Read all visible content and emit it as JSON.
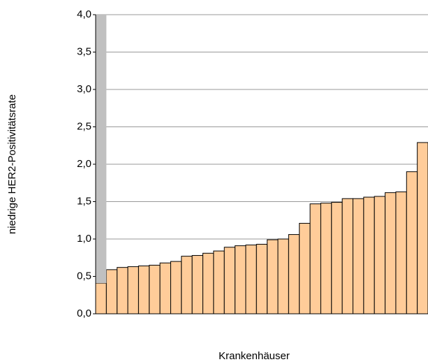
{
  "chart_data": {
    "type": "bar",
    "stacked": true,
    "y_label": "niedrige HER2-Positivitätsrate",
    "x_label": "Krankenhäuser",
    "categories": [
      null,
      null,
      null,
      null,
      null,
      null,
      null,
      null,
      null,
      null,
      null,
      null,
      null,
      null,
      null,
      null,
      null,
      null,
      null,
      null,
      null,
      null,
      null,
      null,
      null,
      null,
      null,
      null,
      null,
      null,
      null
    ],
    "series": [
      {
        "color": "#ffcc99",
        "values": [
          0.41,
          0.59,
          0.62,
          0.63,
          0.64,
          0.65,
          0.68,
          0.7,
          0.77,
          0.78,
          0.81,
          0.84,
          0.89,
          0.91,
          0.92,
          0.93,
          0.99,
          1.0,
          1.06,
          1.21,
          1.47,
          1.48,
          1.49,
          1.54,
          1.54,
          1.56,
          1.57,
          1.62,
          1.63,
          1.9,
          2.29
        ]
      },
      {
        "color": "#c0c0c0",
        "values": [
          3.59,
          null,
          null,
          null,
          null,
          null,
          null,
          null,
          null,
          null,
          null,
          null,
          null,
          null,
          null,
          null,
          null,
          null,
          null,
          null,
          null,
          null,
          null,
          null,
          null,
          null,
          null,
          null,
          null,
          null,
          null
        ]
      }
    ],
    "ylim": [
      0,
      4
    ],
    "yticks": [
      {
        "value": 0,
        "label": "0,0"
      },
      {
        "value": 0.5,
        "label": "0,5"
      },
      {
        "value": 1,
        "label": "1,0"
      },
      {
        "value": 1.5,
        "label": "1,5"
      },
      {
        "value": 2,
        "label": "2,0"
      },
      {
        "value": 2.5,
        "label": "2,5"
      },
      {
        "value": 3,
        "label": "3,0"
      },
      {
        "value": 3.5,
        "label": "3,5"
      },
      {
        "value": 4,
        "label": "4,0"
      }
    ],
    "grid": true
  }
}
